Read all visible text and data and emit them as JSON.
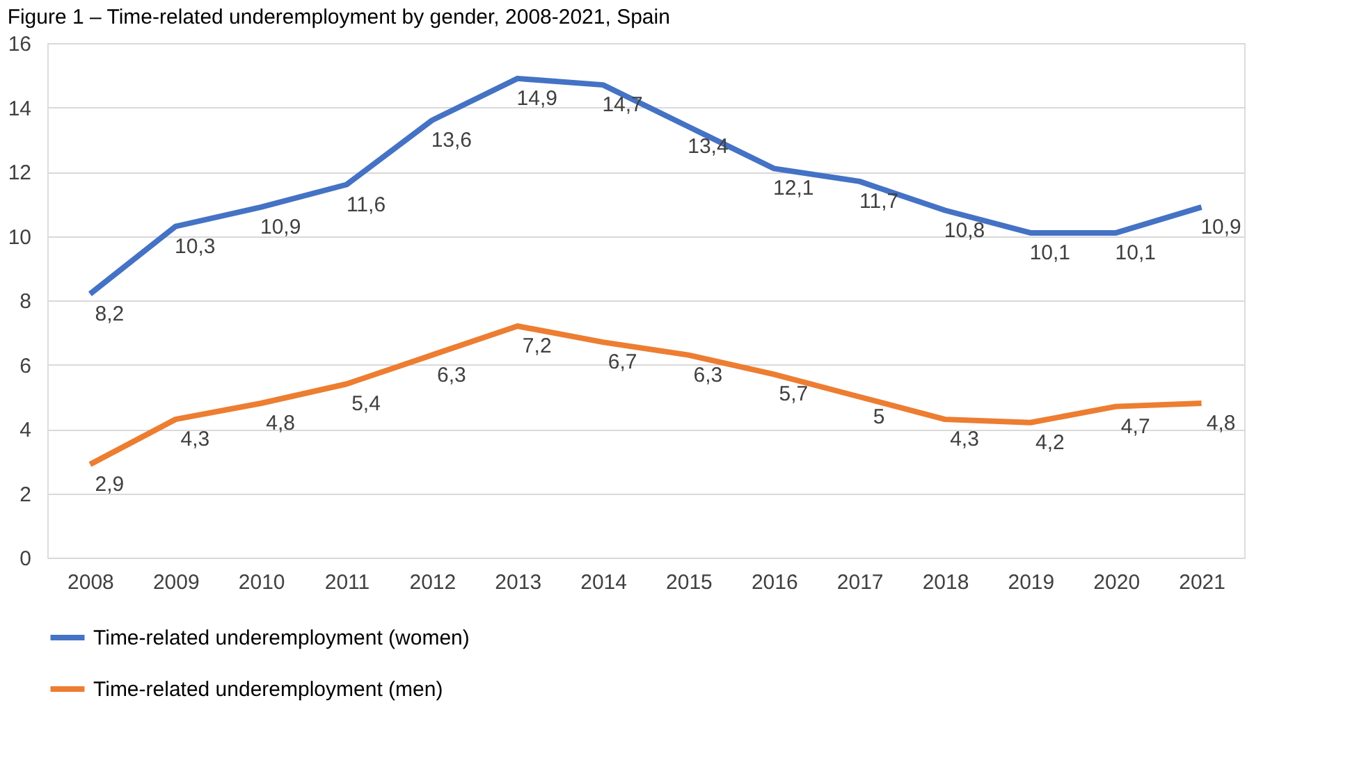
{
  "chart_data": {
    "type": "line",
    "title": "Figure 1 – Time-related underemployment by gender, 2008-2021, Spain",
    "categories": [
      "2008",
      "2009",
      "2010",
      "2011",
      "2012",
      "2013",
      "2014",
      "2015",
      "2016",
      "2017",
      "2018",
      "2019",
      "2020",
      "2021"
    ],
    "series": [
      {
        "name": "Time-related underemployment (women)",
        "color": "#4472c4",
        "values": [
          8.2,
          10.3,
          10.9,
          11.6,
          13.6,
          14.9,
          14.7,
          13.4,
          12.1,
          11.7,
          10.8,
          10.1,
          10.1,
          10.9
        ],
        "value_labels": [
          "8,2",
          "10,3",
          "10,9",
          "11,6",
          "13,6",
          "14,9",
          "14,7",
          "13,4",
          "12,1",
          "11,7",
          "10,8",
          "10,1",
          "10,1",
          "10,9"
        ]
      },
      {
        "name": "Time-related underemployment (men)",
        "color": "#ed7d31",
        "values": [
          2.9,
          4.3,
          4.8,
          5.4,
          6.3,
          7.2,
          6.7,
          6.3,
          5.7,
          5,
          4.3,
          4.2,
          4.7,
          4.8
        ],
        "value_labels": [
          "2,9",
          "4,3",
          "4,8",
          "5,4",
          "6,3",
          "7,2",
          "6,7",
          "6,3",
          "5,7",
          "5",
          "4,3",
          "4,2",
          "4,7",
          "4,8"
        ]
      }
    ],
    "ylim": [
      0,
      16
    ],
    "yticks": [
      0,
      2,
      4,
      6,
      8,
      10,
      12,
      14,
      16
    ],
    "grid": "y",
    "legend": "bottom",
    "marker": "none",
    "line_style": "solid"
  }
}
